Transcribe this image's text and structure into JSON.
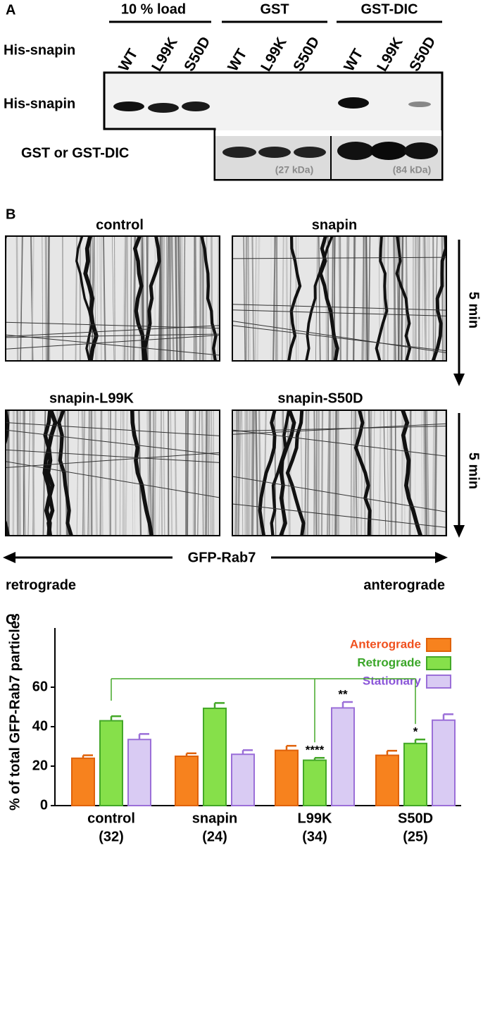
{
  "panel_a": {
    "label": "A",
    "groups": [
      "10 % load",
      "GST",
      "GST-DIC"
    ],
    "lane_header": "His-snapin",
    "lanes": [
      [
        "WT",
        "L99K",
        "S50D"
      ],
      [
        "WT",
        "L99K",
        "S50D"
      ],
      [
        "WT",
        "L99K",
        "S50D"
      ]
    ],
    "rows": [
      "His-snapin",
      "GST or GST-DIC"
    ],
    "sizes": [
      "(27 kDa)",
      "(84 kDa)"
    ]
  },
  "panel_b": {
    "label": "B",
    "conditions": [
      "control",
      "snapin",
      "snapin-L99K",
      "snapin-S50D"
    ],
    "time": [
      "5 min",
      "5 min"
    ],
    "axis": "GFP-Rab7",
    "directions": [
      "retrograde",
      "anterograde"
    ]
  },
  "chart_data": {
    "type": "bar",
    "panel_label": "C",
    "categories": [
      "control",
      "snapin",
      "L99K",
      "S50D"
    ],
    "category_counts": [
      "(32)",
      "(24)",
      "(34)",
      "(25)"
    ],
    "ylabel": "% of total GFP-Rab7 particles",
    "ylim": [
      0,
      90
    ],
    "yticks": [
      0,
      20,
      40,
      60
    ],
    "series": [
      {
        "name": "Anterograde",
        "color": "#f7821e",
        "edge": "#e0620a",
        "label_color": "#f0501e",
        "values": [
          24,
          25,
          28,
          25.5
        ],
        "errors": [
          1.5,
          1.5,
          2.3,
          2.3
        ]
      },
      {
        "name": "Retrograde",
        "color": "#86e04a",
        "edge": "#44a828",
        "label_color": "#3aa628",
        "values": [
          43,
          49.3,
          23,
          31.5
        ],
        "errors": [
          2.3,
          2.7,
          1.2,
          2.0
        ]
      },
      {
        "name": "Stationary",
        "color": "#d9cbf3",
        "edge": "#9b6fd8",
        "label_color": "#8a55d8",
        "values": [
          33.5,
          26,
          49.5,
          43.3
        ],
        "errors": [
          2.8,
          2.1,
          3.0,
          3.0
        ]
      }
    ],
    "annotations": [
      {
        "label": "****",
        "category": "L99K",
        "series": "Retrograde"
      },
      {
        "label": "**",
        "category": "L99K",
        "series": "Stationary"
      },
      {
        "label": "*",
        "category": "S50D",
        "series": "Retrograde"
      }
    ]
  }
}
